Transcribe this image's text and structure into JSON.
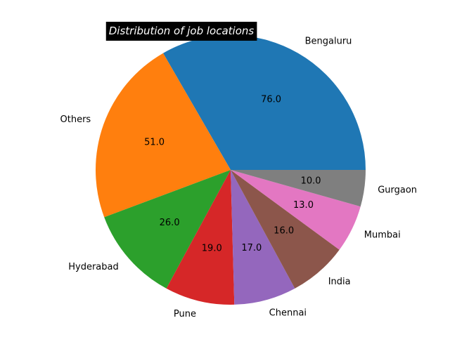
{
  "chart_data": {
    "type": "pie",
    "title": "Distribution of job locations",
    "title_style": {
      "background": "#000000",
      "color": "#ffffff"
    },
    "slices": [
      {
        "label": "Bengaluru",
        "value": 76.0,
        "value_label": "76.0",
        "color": "#1f77b4"
      },
      {
        "label": "Others",
        "value": 51.0,
        "value_label": "51.0",
        "color": "#ff7f0e"
      },
      {
        "label": "Hyderabad",
        "value": 26.0,
        "value_label": "26.0",
        "color": "#2ca02c"
      },
      {
        "label": "Pune",
        "value": 19.0,
        "value_label": "19.0",
        "color": "#d62728"
      },
      {
        "label": "Chennai",
        "value": 17.0,
        "value_label": "17.0",
        "color": "#9467bd"
      },
      {
        "label": "India",
        "value": 16.0,
        "value_label": "16.0",
        "color": "#8c564b"
      },
      {
        "label": "Mumbai",
        "value": 13.0,
        "value_label": "13.0",
        "color": "#e377c2"
      },
      {
        "label": "Gurgaon",
        "value": 10.0,
        "value_label": "10.0",
        "color": "#7f7f7f"
      }
    ],
    "start_angle": 0,
    "direction": "counterclockwise"
  }
}
